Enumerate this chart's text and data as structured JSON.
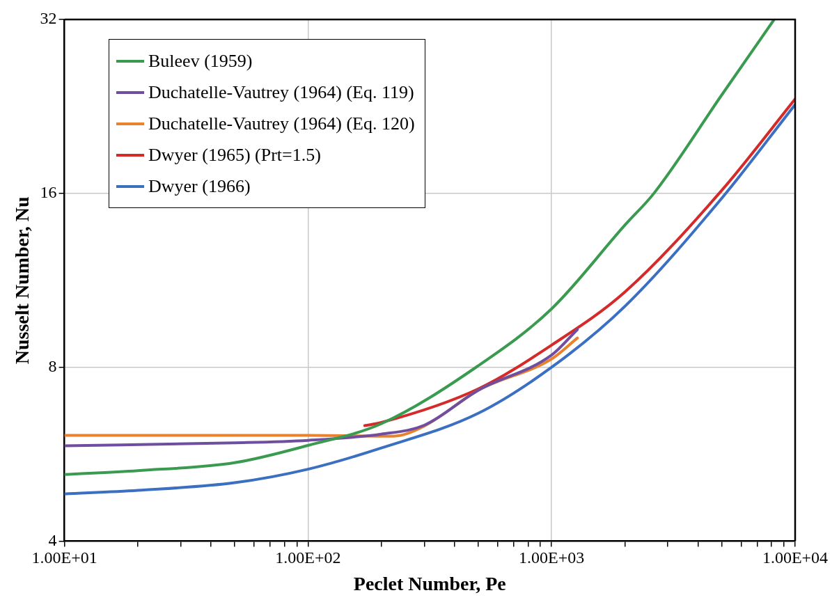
{
  "chart_data": {
    "type": "line",
    "xlabel": "Peclet Number, Pe",
    "ylabel": "Nusselt Number, Nu",
    "log": "xy",
    "grid": true,
    "legend": "top left",
    "marker": "none",
    "line_style": "solid",
    "xlim": [
      10,
      10000
    ],
    "ylim": [
      4,
      32
    ],
    "xticks": [
      {
        "value": 10,
        "label": "1.00E+01"
      },
      {
        "value": 20,
        "label": null
      },
      {
        "value": 30,
        "label": null
      },
      {
        "value": 40,
        "label": null
      },
      {
        "value": 50,
        "label": null
      },
      {
        "value": 60,
        "label": null
      },
      {
        "value": 70,
        "label": null
      },
      {
        "value": 80,
        "label": null
      },
      {
        "value": 90,
        "label": null
      },
      {
        "value": 100,
        "label": "1.00E+02"
      },
      {
        "value": 200,
        "label": null
      },
      {
        "value": 300,
        "label": null
      },
      {
        "value": 400,
        "label": null
      },
      {
        "value": 500,
        "label": null
      },
      {
        "value": 600,
        "label": null
      },
      {
        "value": 700,
        "label": null
      },
      {
        "value": 800,
        "label": null
      },
      {
        "value": 900,
        "label": null
      },
      {
        "value": 1000,
        "label": "1.00E+03"
      },
      {
        "value": 2000,
        "label": null
      },
      {
        "value": 3000,
        "label": null
      },
      {
        "value": 4000,
        "label": null
      },
      {
        "value": 5000,
        "label": null
      },
      {
        "value": 6000,
        "label": null
      },
      {
        "value": 7000,
        "label": null
      },
      {
        "value": 8000,
        "label": null
      },
      {
        "value": 9000,
        "label": null
      },
      {
        "value": 10000,
        "label": "1.00E+04"
      }
    ],
    "yticks": [
      4,
      8,
      16,
      32
    ],
    "series": [
      {
        "name": "Buleev (1959)",
        "color": "#3a9a4f",
        "x": [
          10,
          20,
          50,
          100,
          200,
          500,
          1000,
          2000,
          2630,
          5000,
          8200
        ],
        "values": [
          5.22,
          5.3,
          5.47,
          5.86,
          6.39,
          8.05,
          10.1,
          14.1,
          16,
          23.7,
          32
        ]
      },
      {
        "name": "Duchatelle-Vautrey (1964) (Eq. 119)",
        "color": "#6f4ea0",
        "x": [
          10,
          50,
          100,
          200,
          300,
          500,
          1000,
          1276
        ],
        "values": [
          5.85,
          5.92,
          5.98,
          6.13,
          6.35,
          7.3,
          8.4,
          9.3
        ]
      },
      {
        "name": "Duchatelle-Vautrey (1964) (Eq. 120)",
        "color": "#e8822f",
        "x": [
          10,
          100,
          224,
          300,
          500,
          1000,
          1276
        ],
        "values": [
          6.1,
          6.1,
          6.08,
          6.33,
          7.3,
          8.27,
          8.99
        ]
      },
      {
        "name": "Dwyer (1965) (Prt=1.5)",
        "color": "#d42a2a",
        "x": [
          171,
          200,
          500,
          1000,
          2000,
          5000,
          10000
        ],
        "values": [
          6.34,
          6.42,
          7.34,
          8.74,
          10.8,
          16.2,
          23.3
        ]
      },
      {
        "name": "Dwyer (1966)",
        "color": "#3a6fc2",
        "x": [
          10,
          20,
          50,
          100,
          200,
          500,
          1000,
          2000,
          5000,
          10000
        ],
        "values": [
          4.83,
          4.9,
          5.05,
          5.33,
          5.8,
          6.66,
          8.0,
          10.2,
          15.7,
          22.8
        ]
      }
    ]
  }
}
